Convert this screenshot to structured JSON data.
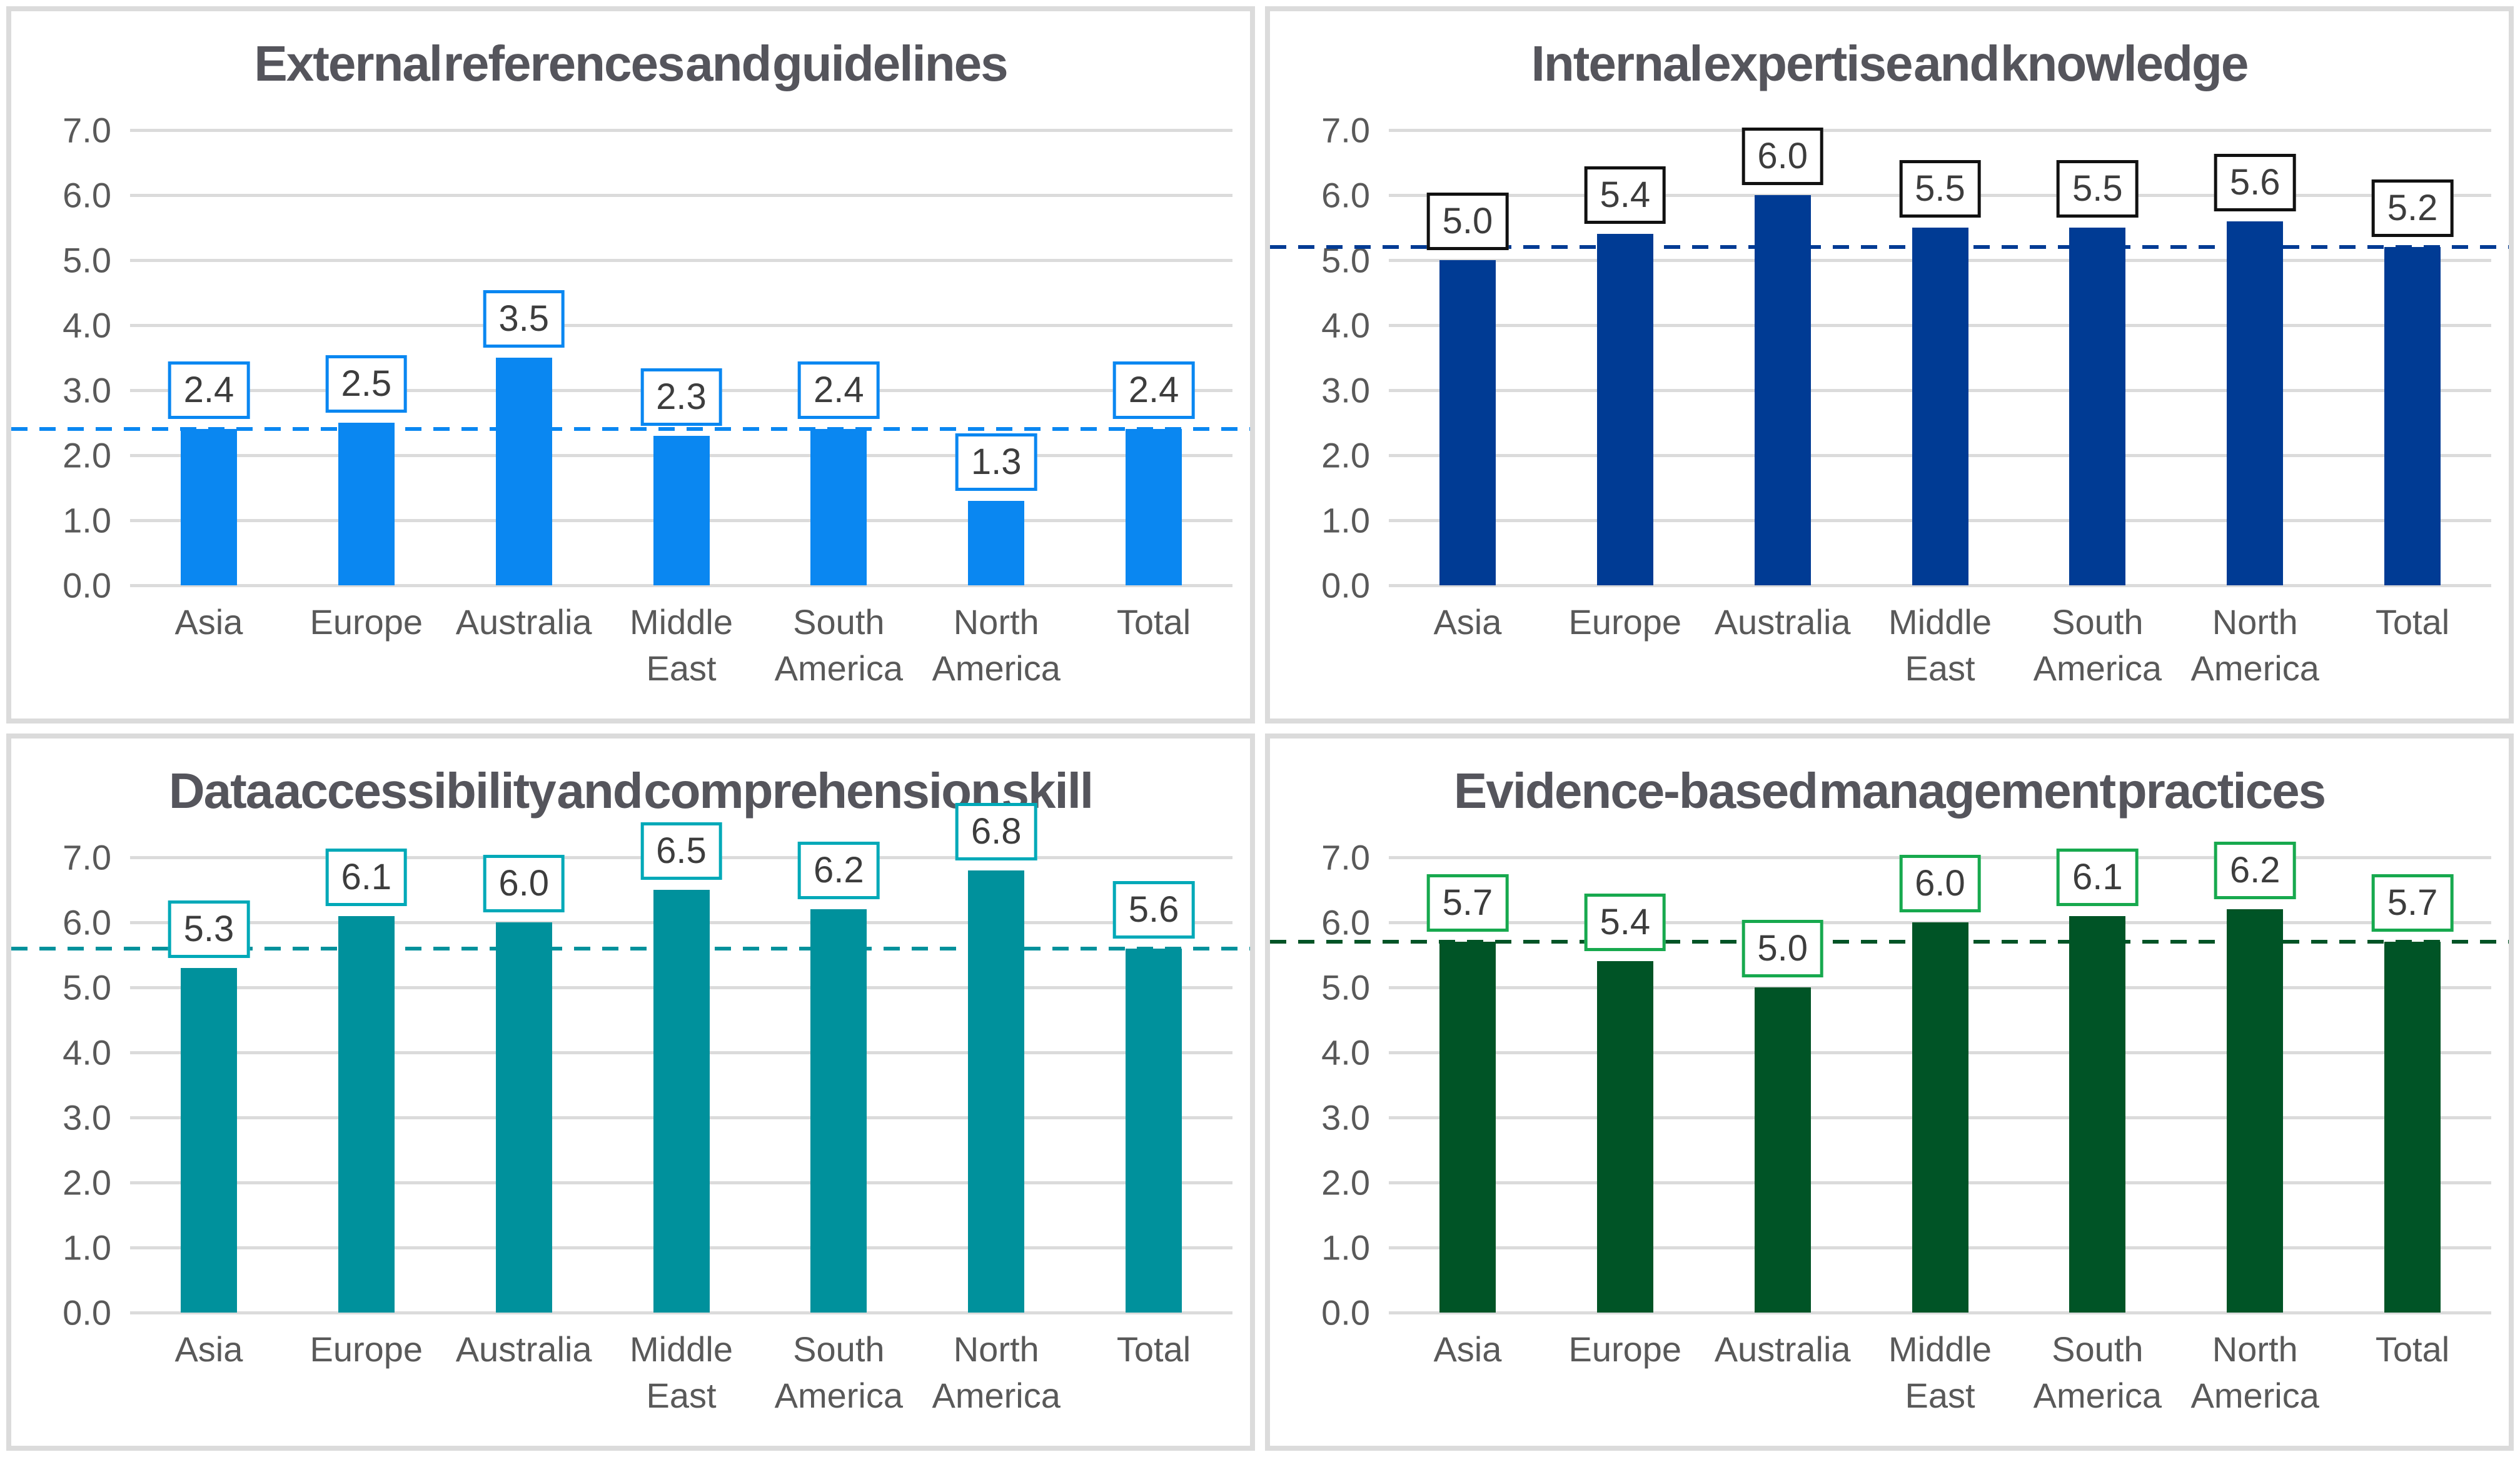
{
  "style": {
    "gridline_color": "#DBDBDB",
    "panel_border_color": "#DBDBDB",
    "title_color": "#55555C",
    "axis_text_color": "#595959",
    "value_text_color": "#3D3D3D",
    "background": "#FFFFFF"
  },
  "chart_data": [
    {
      "type": "bar",
      "title": "External references and guidelines",
      "categories": [
        "Asia",
        "Europe",
        "Australia",
        "Middle East",
        "South America",
        "North America",
        "Total"
      ],
      "values": [
        2.4,
        2.5,
        3.5,
        2.3,
        2.4,
        1.3,
        2.4
      ],
      "value_labels": [
        "2.4",
        "2.5",
        "3.5",
        "2.3",
        "2.4",
        "1.3",
        "2.4"
      ],
      "reference_line": 2.4,
      "ylim": [
        0,
        7
      ],
      "ytick_labels": [
        "0.0",
        "1.0",
        "2.0",
        "3.0",
        "4.0",
        "5.0",
        "6.0",
        "7.0"
      ],
      "grid": true,
      "legend": "none",
      "bar_color": "#0A87F1",
      "value_box_border_color": "#0A87F1",
      "reference_line_color": "#0A87F1"
    },
    {
      "type": "bar",
      "title": "Internal expertise and knowledge",
      "categories": [
        "Asia",
        "Europe",
        "Australia",
        "Middle East",
        "South America",
        "North America",
        "Total"
      ],
      "values": [
        5.0,
        5.4,
        6.0,
        5.5,
        5.5,
        5.6,
        5.2
      ],
      "value_labels": [
        "5.0",
        "5.4",
        "6.0",
        "5.5",
        "5.5",
        "5.6",
        "5.2"
      ],
      "reference_line": 5.2,
      "ylim": [
        0,
        7
      ],
      "ytick_labels": [
        "0.0",
        "1.0",
        "2.0",
        "3.0",
        "4.0",
        "5.0",
        "6.0",
        "7.0"
      ],
      "grid": true,
      "legend": "none",
      "bar_color": "#003B94",
      "value_box_border_color": "#111111",
      "reference_line_color": "#003B94"
    },
    {
      "type": "bar",
      "title": "Data accessibility and comprehension skill",
      "categories": [
        "Asia",
        "Europe",
        "Australia",
        "Middle East",
        "South America",
        "North America",
        "Total"
      ],
      "values": [
        5.3,
        6.1,
        6.0,
        6.5,
        6.2,
        6.8,
        5.6
      ],
      "value_labels": [
        "5.3",
        "6.1",
        "6.0",
        "6.5",
        "6.2",
        "6.8",
        "5.6"
      ],
      "reference_line": 5.6,
      "ylim": [
        0,
        7
      ],
      "ytick_labels": [
        "0.0",
        "1.0",
        "2.0",
        "3.0",
        "4.0",
        "5.0",
        "6.0",
        "7.0"
      ],
      "grid": true,
      "legend": "none",
      "bar_color": "#00919C",
      "value_box_border_color": "#00A9B8",
      "reference_line_color": "#00919C"
    },
    {
      "type": "bar",
      "title": "Evidence-based management practices",
      "categories": [
        "Asia",
        "Europe",
        "Australia",
        "Middle East",
        "South America",
        "North America",
        "Total"
      ],
      "values": [
        5.7,
        5.4,
        5.0,
        6.0,
        6.1,
        6.2,
        5.7
      ],
      "value_labels": [
        "5.7",
        "5.4",
        "5.0",
        "6.0",
        "6.1",
        "6.2",
        "5.7"
      ],
      "reference_line": 5.7,
      "ylim": [
        0,
        7
      ],
      "ytick_labels": [
        "0.0",
        "1.0",
        "2.0",
        "3.0",
        "4.0",
        "5.0",
        "6.0",
        "7.0"
      ],
      "grid": true,
      "legend": "none",
      "bar_color": "#005426",
      "value_box_border_color": "#17A94E",
      "reference_line_color": "#005426"
    }
  ]
}
